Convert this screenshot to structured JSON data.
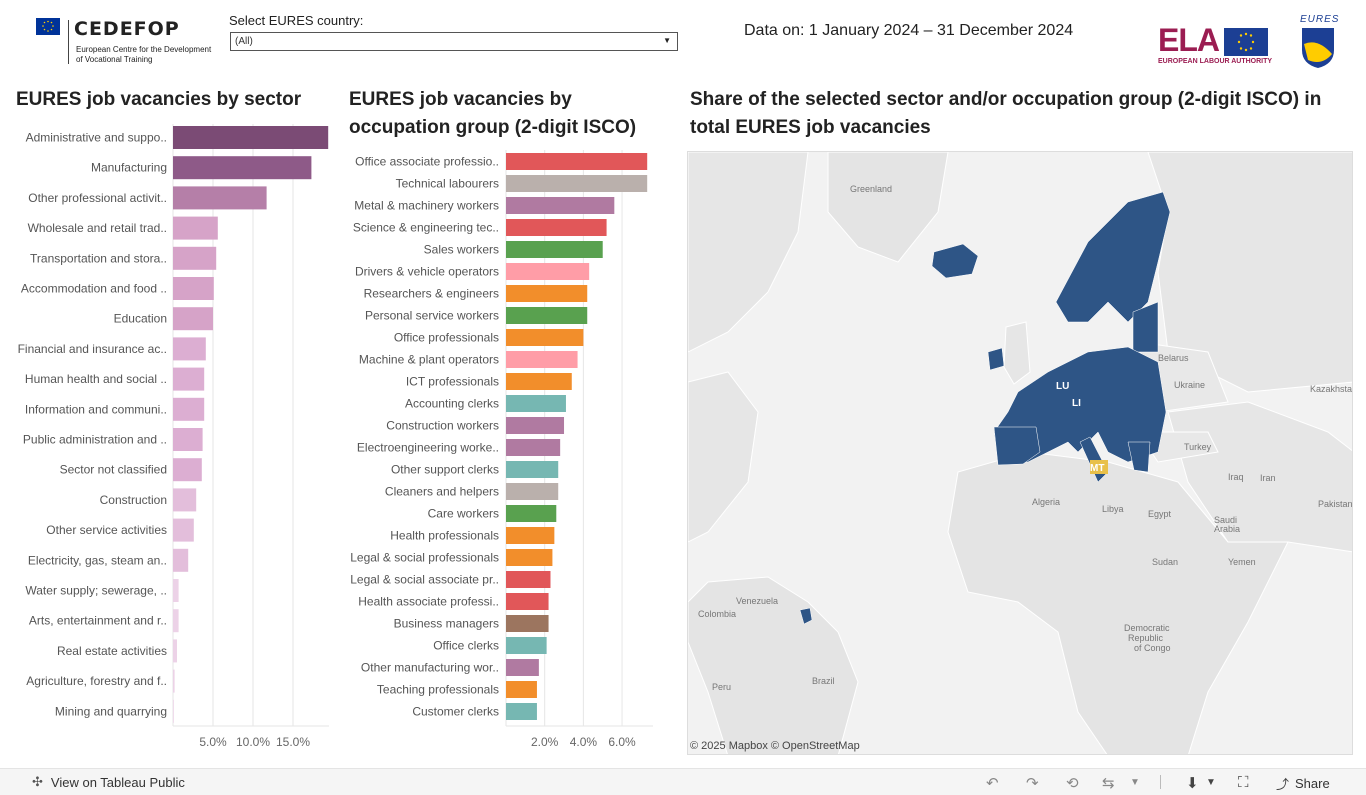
{
  "header": {
    "cedefop_brand": "CEDEFOP",
    "cedefop_sub": "European Centre for the Development of Vocational Training",
    "country_label": "Select EURES country:",
    "country_value": "(All)",
    "date_text": "Data on: 1 January 2024 – 31 December 2024",
    "ela_brand": "ELA",
    "ela_sub": "EUROPEAN LABOUR AUTHORITY",
    "eures_brand": "EURES"
  },
  "titles": {
    "sector": "EURES job vacancies by sector",
    "occupation": "EURES job vacancies by occupation group (2-digit ISCO)",
    "map": "Share of the selected sector and/or occupation group (2-digit ISCO) in total EURES job vacancies"
  },
  "chart_data": [
    {
      "type": "bar",
      "orientation": "horizontal",
      "title": "EURES job vacancies by sector",
      "categories": [
        "Administrative and suppo..",
        "Manufacturing",
        "Other professional activit..",
        "Wholesale and retail trad..",
        "Transportation and stora..",
        "Accommodation and food ..",
        "Education",
        "Financial and insurance ac..",
        "Human health and social ..",
        "Information and communi..",
        "Public administration and ..",
        "Sector not classified",
        "Construction",
        "Other service activities",
        "Electricity, gas, steam an..",
        "Water supply; sewerage, ..",
        "Arts, entertainment and r..",
        "Real estate activities",
        "Agriculture, forestry and f..",
        "Mining and quarrying"
      ],
      "values": [
        19.4,
        17.3,
        11.7,
        5.6,
        5.4,
        5.1,
        5.0,
        4.1,
        3.9,
        3.9,
        3.7,
        3.6,
        2.9,
        2.6,
        1.9,
        0.7,
        0.7,
        0.5,
        0.2,
        0.05
      ],
      "colors": [
        "#7b4b75",
        "#8e5a88",
        "#b57fa8",
        "#d6a3c8",
        "#d6a3c8",
        "#d6a3c8",
        "#d6a3c8",
        "#dcaed2",
        "#dcaed2",
        "#dcaed2",
        "#dcaed2",
        "#dcaed2",
        "#e3bedb",
        "#e3bedb",
        "#e3bedb",
        "#ecd2e7",
        "#ecd2e7",
        "#ecd2e7",
        "#ecd2e7",
        "#f0dcec"
      ],
      "xticks": [
        "5.0%",
        "10.0%",
        "15.0%"
      ],
      "xtick_values": [
        5,
        10,
        15
      ],
      "xlim": [
        0,
        19.5
      ]
    },
    {
      "type": "bar",
      "orientation": "horizontal",
      "title": "EURES job vacancies by occupation group (2-digit ISCO)",
      "categories": [
        "Office associate professio..",
        "Technical labourers",
        "Metal & machinery workers",
        "Science & engineering tec..",
        "Sales workers",
        "Drivers & vehicle operators",
        "Researchers & engineers",
        "Personal service workers",
        "Office professionals",
        "Machine & plant operators",
        "ICT professionals",
        "Accounting clerks",
        "Construction workers",
        "Electroengineering worke..",
        "Other support clerks",
        "Cleaners and helpers",
        "Care workers",
        "Health professionals",
        "Legal & social professionals",
        "Legal & social associate pr..",
        "Health associate professi..",
        "Business managers",
        "Office clerks",
        "Other manufacturing wor..",
        "Teaching professionals",
        "Customer clerks"
      ],
      "values": [
        7.3,
        7.3,
        5.6,
        5.2,
        5.0,
        4.3,
        4.2,
        4.2,
        4.0,
        3.7,
        3.4,
        3.1,
        3.0,
        2.8,
        2.7,
        2.7,
        2.6,
        2.5,
        2.4,
        2.3,
        2.2,
        2.2,
        2.1,
        1.7,
        1.6,
        1.6
      ],
      "colors": [
        "#e15759",
        "#bab0ac",
        "#b07aa1",
        "#e15759",
        "#59a14f",
        "#ff9da7",
        "#f28e2b",
        "#59a14f",
        "#f28e2b",
        "#ff9da7",
        "#f28e2b",
        "#76b7b2",
        "#b07aa1",
        "#b07aa1",
        "#76b7b2",
        "#bab0ac",
        "#59a14f",
        "#f28e2b",
        "#f28e2b",
        "#e15759",
        "#e15759",
        "#9c755f",
        "#76b7b2",
        "#b07aa1",
        "#f28e2b",
        "#76b7b2"
      ],
      "xticks": [
        "2.0%",
        "4.0%",
        "6.0%"
      ],
      "xtick_values": [
        2,
        4,
        6
      ],
      "xlim": [
        0,
        7.6
      ]
    }
  ],
  "map": {
    "attribution": "© 2025 Mapbox  © OpenStreetMap",
    "place_names": [
      "Greenland",
      "Belarus",
      "Ukraine",
      "Kazakhsta",
      "Turkey",
      "Iraq",
      "Iran",
      "Algeria",
      "Libya",
      "Egypt",
      "Saudi Arabia",
      "Pakistan",
      "Sudan",
      "Yemen",
      "Venezuela",
      "Colombia",
      "Democratic Republic of Congo",
      "Peru",
      "Brazil"
    ],
    "codes": [
      "LU",
      "LI",
      "MT"
    ],
    "highlight_color": "#2e5586",
    "small_color": "#e8c04a"
  },
  "footer": {
    "view_on": "View on Tableau Public",
    "share": "Share"
  }
}
